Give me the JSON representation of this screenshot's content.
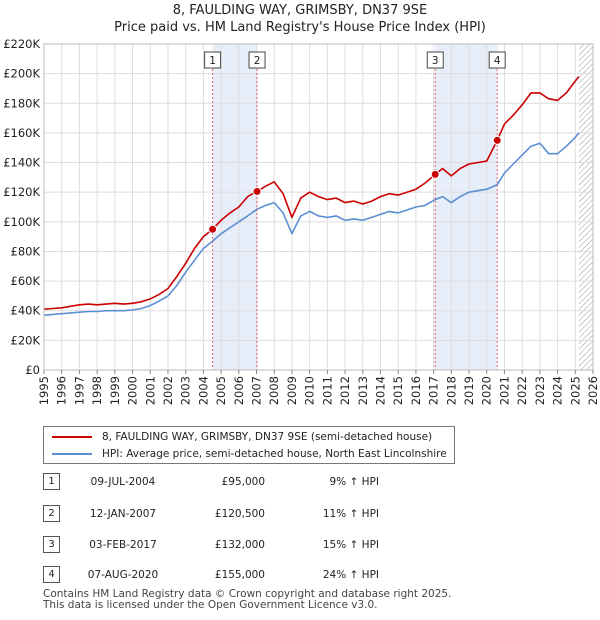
{
  "header": {
    "title_line1": "8, FAULDING WAY, GRIMSBY, DN37 9SE",
    "title_line2": "Price paid vs. HM Land Registry's House Price Index (HPI)"
  },
  "chart_data": {
    "type": "line",
    "title": "8, FAULDING WAY, GRIMSBY, DN37 9SE — Price paid vs. HM Land Registry's House Price Index (HPI)",
    "xlabel": "",
    "ylabel": "",
    "xlim": [
      1995,
      2026
    ],
    "ylim": [
      0,
      220000
    ],
    "x_ticks": [
      1995,
      1996,
      1997,
      1998,
      1999,
      2000,
      2001,
      2002,
      2003,
      2004,
      2005,
      2006,
      2007,
      2008,
      2009,
      2010,
      2011,
      2012,
      2013,
      2014,
      2015,
      2016,
      2017,
      2018,
      2019,
      2020,
      2021,
      2022,
      2023,
      2024,
      2025,
      2026
    ],
    "y_ticks": [
      {
        "value": 0,
        "label": "£0"
      },
      {
        "value": 20000,
        "label": "£20K"
      },
      {
        "value": 40000,
        "label": "£40K"
      },
      {
        "value": 60000,
        "label": "£60K"
      },
      {
        "value": 80000,
        "label": "£80K"
      },
      {
        "value": 100000,
        "label": "£100K"
      },
      {
        "value": 120000,
        "label": "£120K"
      },
      {
        "value": 140000,
        "label": "£140K"
      },
      {
        "value": 160000,
        "label": "£160K"
      },
      {
        "value": 180000,
        "label": "£180K"
      },
      {
        "value": 200000,
        "label": "£200K"
      },
      {
        "value": 220000,
        "label": "£220K"
      }
    ],
    "grid": true,
    "series": [
      {
        "name": "8, FAULDING WAY, GRIMSBY, DN37 9SE (semi-detached house)",
        "color": "#cc0000",
        "x": [
          1995.0,
          1995.5,
          1996.0,
          1996.5,
          1997.0,
          1997.5,
          1998.0,
          1998.5,
          1999.0,
          1999.5,
          2000.0,
          2000.5,
          2001.0,
          2001.5,
          2002.0,
          2002.5,
          2003.0,
          2003.5,
          2004.0,
          2004.52,
          2005.0,
          2005.5,
          2006.0,
          2006.5,
          2007.03,
          2007.5,
          2008.0,
          2008.5,
          2009.0,
          2009.5,
          2010.0,
          2010.5,
          2011.0,
          2011.5,
          2012.0,
          2012.5,
          2013.0,
          2013.5,
          2014.0,
          2014.5,
          2015.0,
          2015.5,
          2016.0,
          2016.5,
          2017.09,
          2017.5,
          2018.0,
          2018.5,
          2019.0,
          2019.5,
          2020.0,
          2020.59,
          2021.0,
          2021.5,
          2022.0,
          2022.5,
          2023.0,
          2023.5,
          2024.0,
          2024.5,
          2025.0,
          2025.2
        ],
        "values": [
          41000,
          41500,
          42000,
          43000,
          44000,
          44500,
          44000,
          44500,
          45000,
          44500,
          45000,
          46000,
          48000,
          51000,
          55000,
          63000,
          72000,
          82000,
          90000,
          95000,
          101000,
          106000,
          110000,
          117000,
          120500,
          124000,
          127000,
          119000,
          103000,
          116000,
          120000,
          117000,
          115000,
          116000,
          113000,
          114000,
          112000,
          114000,
          117000,
          119000,
          118000,
          120000,
          122000,
          126000,
          132000,
          136000,
          131000,
          136000,
          139000,
          140000,
          141000,
          155000,
          166000,
          172000,
          179000,
          187000,
          187000,
          183000,
          182000,
          187000,
          195000,
          198000
        ]
      },
      {
        "name": "HPI: Average price, semi-detached house, North East Lincolnshire",
        "color": "#5b8fd4",
        "x": [
          1995.0,
          1995.5,
          1996.0,
          1996.5,
          1997.0,
          1997.5,
          1998.0,
          1998.5,
          1999.0,
          1999.5,
          2000.0,
          2000.5,
          2001.0,
          2001.5,
          2002.0,
          2002.5,
          2003.0,
          2003.5,
          2004.0,
          2004.52,
          2005.0,
          2005.5,
          2006.0,
          2006.5,
          2007.03,
          2007.5,
          2008.0,
          2008.5,
          2009.0,
          2009.5,
          2010.0,
          2010.5,
          2011.0,
          2011.5,
          2012.0,
          2012.5,
          2013.0,
          2013.5,
          2014.0,
          2014.5,
          2015.0,
          2015.5,
          2016.0,
          2016.5,
          2017.09,
          2017.5,
          2018.0,
          2018.5,
          2019.0,
          2019.5,
          2020.0,
          2020.59,
          2021.0,
          2021.5,
          2022.0,
          2022.5,
          2023.0,
          2023.5,
          2024.0,
          2024.5,
          2025.0,
          2025.2
        ],
        "values": [
          37000,
          37500,
          38000,
          38500,
          39000,
          39500,
          39500,
          40000,
          40000,
          40000,
          40500,
          41500,
          43500,
          46500,
          50000,
          57000,
          66000,
          74000,
          82000,
          87000,
          92000,
          96000,
          100000,
          104000,
          108500,
          111000,
          113000,
          106000,
          92000,
          104000,
          107000,
          104000,
          103000,
          104000,
          101000,
          102000,
          101000,
          103000,
          105000,
          107000,
          106000,
          108000,
          110000,
          111000,
          115000,
          117000,
          113000,
          117000,
          120000,
          121000,
          122000,
          125000,
          133000,
          139000,
          145000,
          151000,
          153000,
          146000,
          146000,
          151000,
          157000,
          160000
        ]
      }
    ],
    "annotations": [
      {
        "label": "1",
        "x": 2004.52,
        "value": 95000
      },
      {
        "label": "2",
        "x": 2007.03,
        "value": 120500
      },
      {
        "label": "3",
        "x": 2017.09,
        "value": 132000
      },
      {
        "label": "4",
        "x": 2020.59,
        "value": 155000
      }
    ],
    "shaded_periods": [
      [
        2004.52,
        2007.03
      ],
      [
        2017.09,
        2020.59
      ]
    ],
    "hatched_from": 2025.2,
    "legend_position": "below"
  },
  "legend": {
    "property_label": "8, FAULDING WAY, GRIMSBY, DN37 9SE (semi-detached house)",
    "hpi_label": "HPI: Average price, semi-detached house, North East Lincolnshire",
    "property_color": "#cc0000",
    "hpi_color": "#5b8fd4"
  },
  "sales": [
    {
      "num": "1",
      "date": "09-JUL-2004",
      "price": "£95,000",
      "hpi": "9% ↑ HPI"
    },
    {
      "num": "2",
      "date": "12-JAN-2007",
      "price": "£120,500",
      "hpi": "11% ↑ HPI"
    },
    {
      "num": "3",
      "date": "03-FEB-2017",
      "price": "£132,000",
      "hpi": "15% ↑ HPI"
    },
    {
      "num": "4",
      "date": "07-AUG-2020",
      "price": "£155,000",
      "hpi": "24% ↑ HPI"
    }
  ],
  "footer": {
    "line1": "Contains HM Land Registry data © Crown copyright and database right 2025.",
    "line2": "This data is licensed under the Open Government Licence v3.0."
  }
}
